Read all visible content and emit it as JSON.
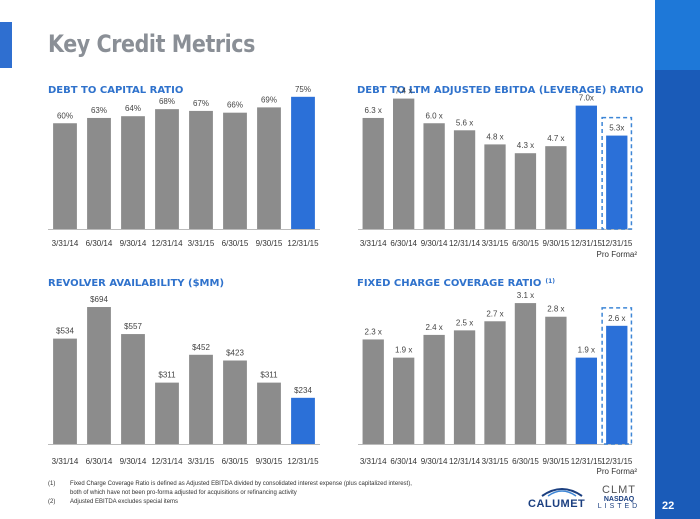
{
  "page": {
    "title": "Key Credit Metrics",
    "page_number": "22",
    "footnotes": [
      {
        "num": "(1)",
        "lines": [
          "Fixed Charge Coverage Ratio is defined as Adjusted EBITDA divided by consolidated interest expense (plus capitalized interest),",
          "both of which have not been pro-forma adjusted for acquisitions or refinancing activity"
        ]
      },
      {
        "num": "(2)",
        "lines": [
          "Adjusted EBITDA excludes special items"
        ]
      }
    ],
    "logos": {
      "calumet": "CALUMET",
      "nasdaq_ticker": "CLMT",
      "nasdaq_name": "NASDAQ",
      "nasdaq_listed": "LISTED"
    }
  },
  "colors": {
    "gray_bar": "#8c8c8c",
    "blue_bar": "#2b70d8",
    "title_blue": "#2f72cc",
    "dash_border": "#3d86d6"
  },
  "chart_data": [
    {
      "type": "bar",
      "title": "DEBT TO CAPITAL RATIO",
      "categories": [
        "3/31/14",
        "6/30/14",
        "9/30/14",
        "12/31/14",
        "3/31/15",
        "6/30/15",
        "9/30/15",
        "12/31/15"
      ],
      "values": [
        60,
        63,
        64,
        68,
        67,
        66,
        69,
        75
      ],
      "labels": [
        "60%",
        "63%",
        "64%",
        "68%",
        "67%",
        "66%",
        "69%",
        "75%"
      ],
      "highlight": [
        7
      ],
      "dashed": [],
      "ylim": [
        0,
        80
      ]
    },
    {
      "type": "bar",
      "title": "DEBT TO LTM ADJUSTED EBITDA (LEVERAGE) RATIO",
      "categories": [
        "3/31/14",
        "6/30/14",
        "9/30/14",
        "12/31/14",
        "3/31/15",
        "6/30/15",
        "9/30/15",
        "12/31/15",
        "12/31/15"
      ],
      "category_sub": [
        "",
        "",
        "",
        "",
        "",
        "",
        "",
        "",
        "Pro Forma²"
      ],
      "values": [
        6.3,
        7.4,
        6.0,
        5.6,
        4.8,
        4.3,
        4.7,
        7.0,
        5.3
      ],
      "labels": [
        "6.3 x",
        "7.4 x",
        "6.0 x",
        "5.6 x",
        "4.8 x",
        "4.3 x",
        "4.7 x",
        "7.0x",
        "5.3x"
      ],
      "highlight": [
        7,
        8
      ],
      "dashed": [
        8
      ],
      "ylim": [
        0,
        8
      ]
    },
    {
      "type": "bar",
      "title": "REVOLVER AVAILABILITY ($MM)",
      "categories": [
        "3/31/14",
        "6/30/14",
        "9/30/14",
        "12/31/14",
        "3/31/15",
        "6/30/15",
        "9/30/15",
        "12/31/15"
      ],
      "values": [
        534,
        694,
        557,
        311,
        452,
        423,
        311,
        234
      ],
      "labels": [
        "$534",
        "$694",
        "$557",
        "$311",
        "$452",
        "$423",
        "$311",
        "$234"
      ],
      "highlight": [
        7
      ],
      "dashed": [],
      "ylim": [
        0,
        760
      ]
    },
    {
      "type": "bar",
      "title": "FIXED CHARGE COVERAGE RATIO",
      "title_sup": "(1)",
      "categories": [
        "3/31/14",
        "6/30/14",
        "9/30/14",
        "12/31/14",
        "3/31/15",
        "6/30/15",
        "9/30/15",
        "12/31/15",
        "12/31/15"
      ],
      "category_sub": [
        "",
        "",
        "",
        "",
        "",
        "",
        "",
        "",
        "Pro Forma²"
      ],
      "values": [
        2.3,
        1.9,
        2.4,
        2.5,
        2.7,
        3.1,
        2.8,
        1.9,
        2.6
      ],
      "labels": [
        "2.3 x",
        "1.9 x",
        "2.4 x",
        "2.5 x",
        "2.7 x",
        "3.1 x",
        "2.8 x",
        "1.9 x",
        "2.6 x"
      ],
      "highlight": [
        7,
        8
      ],
      "dashed": [
        8
      ],
      "ylim": [
        0,
        3.3
      ]
    }
  ]
}
